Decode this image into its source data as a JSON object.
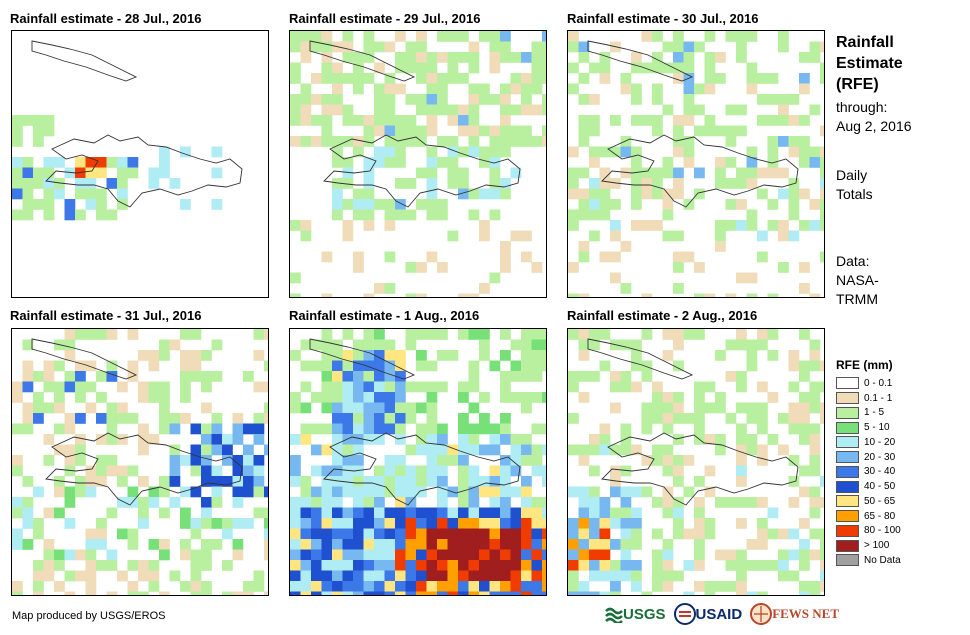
{
  "panels": [
    {
      "title": "Rainfall estimate - 28 Jul., 2016"
    },
    {
      "title": "Rainfall estimate - 29 Jul., 2016"
    },
    {
      "title": "Rainfall estimate - 30 Jul., 2016"
    },
    {
      "title": "Rainfall estimate - 31 Jul., 2016"
    },
    {
      "title": "Rainfall estimate - 1 Aug., 2016"
    },
    {
      "title": "Rainfall estimate - 2 Aug., 2016"
    }
  ],
  "side": {
    "title_lines": [
      "Rainfall",
      "Estimate",
      "(RFE)"
    ],
    "through_label": "through:",
    "through_date": "Aug 2, 2016",
    "daily": "Daily",
    "totals": "Totals",
    "data_label": "Data:",
    "data_source_1": "NASA-",
    "data_source_2": "TRMM"
  },
  "legend": {
    "title": "RFE (mm)",
    "items": [
      {
        "label": "0 - 0.1",
        "color": "#ffffff"
      },
      {
        "label": "0.1 - 1",
        "color": "#f0dcb8"
      },
      {
        "label": "1 - 5",
        "color": "#b8f0a0"
      },
      {
        "label": "5 - 10",
        "color": "#78e078"
      },
      {
        "label": "10 - 20",
        "color": "#b0ecf4"
      },
      {
        "label": "20 - 30",
        "color": "#78b8f0"
      },
      {
        "label": "30 - 40",
        "color": "#3c78e8"
      },
      {
        "label": "40 - 50",
        "color": "#1e50d0"
      },
      {
        "label": "50 - 65",
        "color": "#ffe680"
      },
      {
        "label": "65 - 80",
        "color": "#ffa000"
      },
      {
        "label": "80 - 100",
        "color": "#f03c00"
      },
      {
        "label": "> 100",
        "color": "#a01e1e"
      },
      {
        "label": "No Data",
        "color": "#a0a0a0"
      }
    ]
  },
  "footer": {
    "credit": "Map produced by USGS/EROS",
    "logo_usgs": "USGS",
    "logo_usaid": "USAID",
    "logo_fews": "FEWS NET"
  }
}
